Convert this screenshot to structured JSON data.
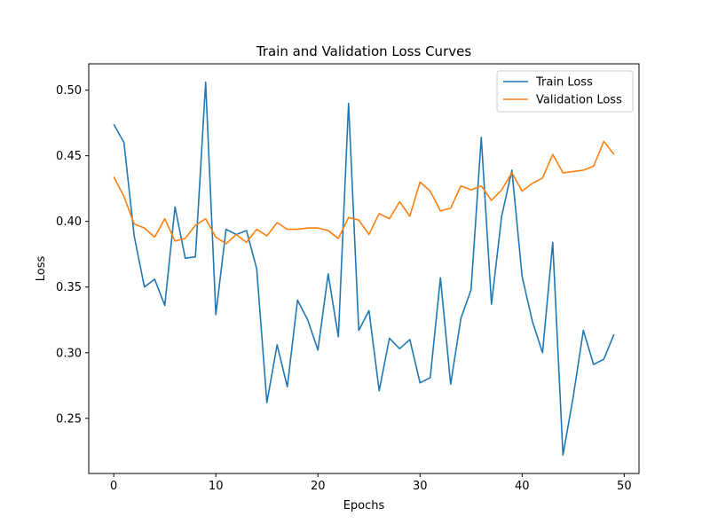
{
  "chart_data": {
    "type": "line",
    "title": "Train and Validation Loss Curves",
    "xlabel": "Epochs",
    "ylabel": "Loss",
    "xlim": [
      -2.45,
      51.45
    ],
    "ylim": [
      0.208,
      0.52
    ],
    "x_ticks": [
      0,
      10,
      20,
      30,
      40,
      50
    ],
    "y_ticks": [
      0.25,
      0.3,
      0.35,
      0.4,
      0.45,
      0.5
    ],
    "grid": false,
    "legend_placement": "top-right",
    "x": [
      0,
      1,
      2,
      3,
      4,
      5,
      6,
      7,
      8,
      9,
      10,
      11,
      12,
      13,
      14,
      15,
      16,
      17,
      18,
      19,
      20,
      21,
      22,
      23,
      24,
      25,
      26,
      27,
      28,
      29,
      30,
      31,
      32,
      33,
      34,
      35,
      36,
      37,
      38,
      39,
      40,
      41,
      42,
      43,
      44,
      45,
      46,
      47,
      48,
      49
    ],
    "series": [
      {
        "name": "Train Loss",
        "color": "#1f77b4",
        "values": [
          0.474,
          0.46,
          0.389,
          0.35,
          0.356,
          0.336,
          0.411,
          0.372,
          0.373,
          0.506,
          0.329,
          0.394,
          0.39,
          0.393,
          0.364,
          0.262,
          0.306,
          0.274,
          0.34,
          0.325,
          0.302,
          0.36,
          0.312,
          0.49,
          0.317,
          0.332,
          0.271,
          0.311,
          0.303,
          0.31,
          0.277,
          0.281,
          0.357,
          0.276,
          0.326,
          0.348,
          0.464,
          0.337,
          0.404,
          0.439,
          0.358,
          0.324,
          0.3,
          0.384,
          0.222,
          0.266,
          0.317,
          0.291,
          0.295,
          0.314
        ]
      },
      {
        "name": "Validation Loss",
        "color": "#ff7f0e",
        "values": [
          0.434,
          0.419,
          0.398,
          0.395,
          0.388,
          0.402,
          0.385,
          0.387,
          0.397,
          0.402,
          0.388,
          0.383,
          0.39,
          0.384,
          0.394,
          0.389,
          0.399,
          0.394,
          0.394,
          0.395,
          0.395,
          0.393,
          0.387,
          0.403,
          0.401,
          0.39,
          0.406,
          0.402,
          0.415,
          0.404,
          0.43,
          0.423,
          0.408,
          0.41,
          0.427,
          0.424,
          0.427,
          0.416,
          0.424,
          0.437,
          0.423,
          0.429,
          0.433,
          0.451,
          0.437,
          0.438,
          0.439,
          0.442,
          0.461,
          0.451
        ]
      }
    ]
  }
}
